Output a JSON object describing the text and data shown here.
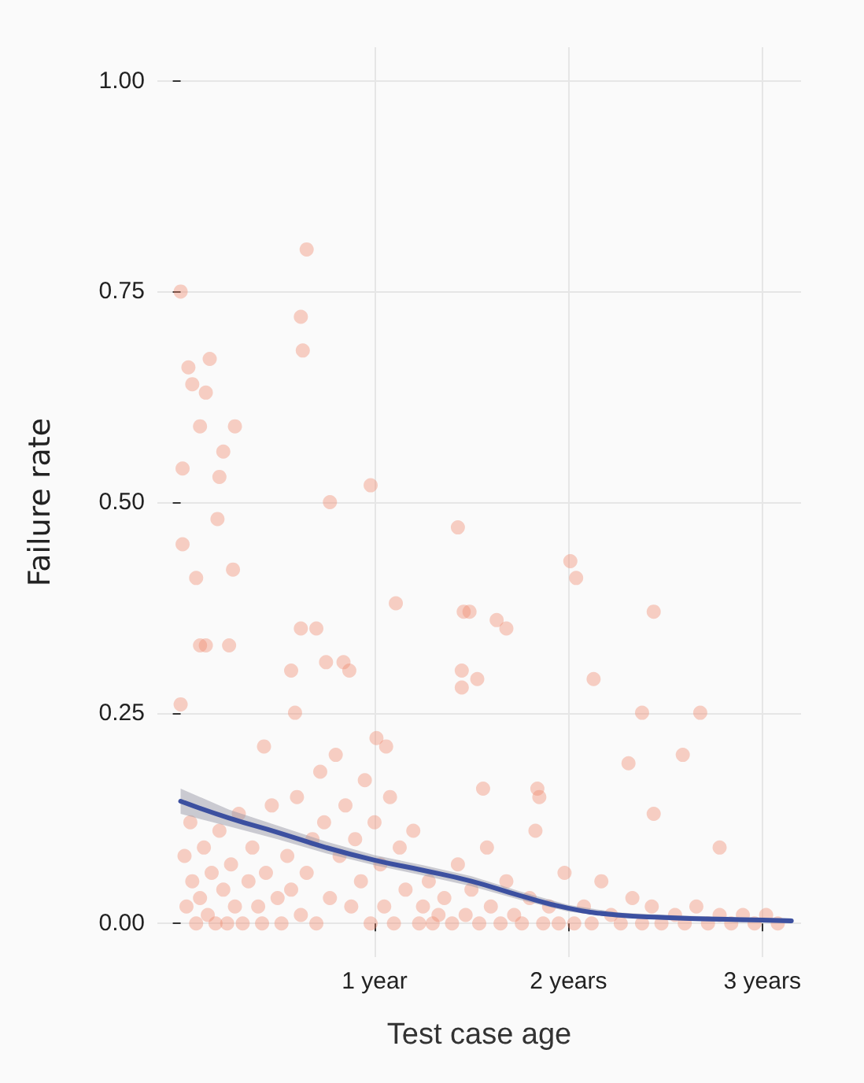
{
  "chart_data": {
    "type": "scatter",
    "xlabel": "Test case age",
    "ylabel": "Failure rate",
    "xlim": [
      -0.12,
      3.2
    ],
    "ylim": [
      -0.04,
      1.04
    ],
    "xticks": [
      {
        "value": 1,
        "label": "1 year"
      },
      {
        "value": 2,
        "label": "2 years"
      },
      {
        "value": 3,
        "label": "3 years"
      }
    ],
    "yticks": [
      {
        "value": 0,
        "label": "0.00"
      },
      {
        "value": 0.25,
        "label": "0.25"
      },
      {
        "value": 0.5,
        "label": "0.50"
      },
      {
        "value": 0.75,
        "label": "0.75"
      },
      {
        "value": 1,
        "label": "1.00"
      }
    ],
    "grid": true,
    "series": [
      {
        "marker": "circle",
        "color": "#f08a6e",
        "x": [
          0,
          0.65,
          0.62,
          0.63,
          0.04,
          0.15,
          0.06,
          0.13,
          0.1,
          0.28,
          0.22,
          0.01,
          0.2,
          0.98,
          0.77,
          0.19,
          0.01,
          0.27,
          0.08,
          1.43,
          2.01,
          2.04,
          2.44,
          1.46,
          1.49,
          1.63,
          1.68,
          1.45,
          1.53,
          1.45,
          1.11,
          2.13,
          2.38,
          2.68,
          2.31,
          2.59,
          0.1,
          0.13,
          0,
          0.25,
          0.84,
          0.75,
          0.62,
          0.7,
          0.57,
          0.87,
          0.59,
          1.01,
          1.06,
          0.43,
          1.56,
          1.84,
          1.85,
          2.78,
          2.44,
          0.02,
          0.03,
          0.05,
          0.06,
          0.08,
          0.1,
          0.12,
          0.14,
          0.16,
          0.18,
          0.2,
          0.22,
          0.24,
          0.26,
          0.28,
          0.3,
          0.32,
          0.35,
          0.37,
          0.4,
          0.42,
          0.44,
          0.47,
          0.5,
          0.52,
          0.55,
          0.57,
          0.6,
          0.62,
          0.65,
          0.68,
          0.7,
          0.72,
          0.74,
          0.77,
          0.8,
          0.82,
          0.85,
          0.88,
          0.9,
          0.93,
          0.95,
          0.98,
          1.0,
          1.03,
          1.05,
          1.08,
          1.1,
          1.13,
          1.16,
          1.2,
          1.23,
          1.25,
          1.28,
          1.3,
          1.33,
          1.36,
          1.4,
          1.43,
          1.47,
          1.5,
          1.54,
          1.58,
          1.6,
          1.65,
          1.68,
          1.72,
          1.76,
          1.8,
          1.83,
          1.87,
          1.9,
          1.95,
          1.98,
          2.03,
          2.08,
          2.12,
          2.17,
          2.22,
          2.27,
          2.33,
          2.38,
          2.43,
          2.48,
          2.55,
          2.6,
          2.66,
          2.72,
          2.78,
          2.84,
          2.9,
          2.96,
          3.02,
          3.08
        ],
        "values": [
          0.75,
          0.8,
          0.72,
          0.68,
          0.66,
          0.67,
          0.64,
          0.63,
          0.59,
          0.59,
          0.56,
          0.54,
          0.53,
          0.52,
          0.5,
          0.48,
          0.45,
          0.42,
          0.41,
          0.47,
          0.43,
          0.41,
          0.37,
          0.37,
          0.37,
          0.36,
          0.35,
          0.3,
          0.29,
          0.28,
          0.38,
          0.29,
          0.25,
          0.25,
          0.19,
          0.2,
          0.33,
          0.33,
          0.26,
          0.33,
          0.31,
          0.31,
          0.35,
          0.35,
          0.3,
          0.3,
          0.25,
          0.22,
          0.21,
          0.21,
          0.16,
          0.16,
          0.15,
          0.09,
          0.13,
          0.08,
          0.02,
          0.12,
          0.05,
          0,
          0.03,
          0.09,
          0.01,
          0.06,
          0,
          0.11,
          0.04,
          0,
          0.07,
          0.02,
          0.13,
          0,
          0.05,
          0.09,
          0.02,
          0,
          0.06,
          0.14,
          0.03,
          0,
          0.08,
          0.04,
          0.15,
          0.01,
          0.06,
          0.1,
          0,
          0.18,
          0.12,
          0.03,
          0.2,
          0.08,
          0.14,
          0.02,
          0.1,
          0.05,
          0.17,
          0,
          0.12,
          0.07,
          0.02,
          0.15,
          0,
          0.09,
          0.04,
          0.11,
          0,
          0.02,
          0.05,
          0,
          0.01,
          0.03,
          0,
          0.07,
          0.01,
          0.04,
          0,
          0.09,
          0.02,
          0,
          0.05,
          0.01,
          0,
          0.03,
          0.11,
          0,
          0.02,
          0,
          0.06,
          0,
          0.02,
          0,
          0.05,
          0.01,
          0,
          0.03,
          0,
          0.02,
          0,
          0.01,
          0,
          0.02,
          0,
          0.01,
          0,
          0.01,
          0,
          0.01,
          0
        ]
      },
      {
        "type": "line",
        "color": "#3c50a0",
        "line_style": "solid",
        "x": [
          0,
          0.25,
          0.5,
          0.75,
          1,
          1.25,
          1.5,
          1.75,
          2,
          2.25,
          2.5,
          2.75,
          3,
          3.15
        ],
        "values": [
          0.145,
          0.125,
          0.108,
          0.09,
          0.075,
          0.063,
          0.05,
          0.033,
          0.018,
          0.01,
          0.007,
          0.005,
          0.004,
          0.003
        ],
        "lower": [
          0.13,
          0.115,
          0.1,
          0.083,
          0.069,
          0.057,
          0.044,
          0.028,
          0.014,
          0.007,
          0.004,
          0.002,
          0.001,
          0
        ],
        "upper": [
          0.16,
          0.135,
          0.116,
          0.097,
          0.081,
          0.069,
          0.056,
          0.038,
          0.022,
          0.013,
          0.01,
          0.008,
          0.007,
          0.006
        ]
      }
    ]
  }
}
